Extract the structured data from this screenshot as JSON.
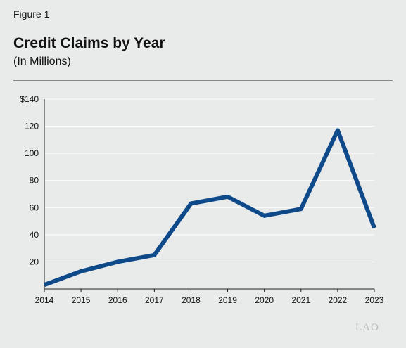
{
  "figure_label": "Figure 1",
  "chart_data": {
    "type": "line",
    "title": "Credit Claims by Year",
    "subtitle": "(In Millions)",
    "xlabel": "",
    "ylabel": "",
    "x": [
      "2014",
      "2015",
      "2016",
      "2017",
      "2018",
      "2019",
      "2020",
      "2021",
      "2022",
      "2023"
    ],
    "series": [
      {
        "values": [
          3,
          13,
          20,
          25,
          63,
          68,
          54,
          59,
          117,
          45
        ],
        "color": "#0e4a8a"
      }
    ],
    "ylim": [
      0,
      140
    ],
    "y_ticks": [
      20,
      40,
      60,
      80,
      100,
      120,
      140
    ],
    "y_tick_labels": [
      "20",
      "40",
      "60",
      "80",
      "100",
      "120",
      "$140"
    ],
    "grid": true,
    "legend": "none"
  },
  "logo_text": "LAO"
}
